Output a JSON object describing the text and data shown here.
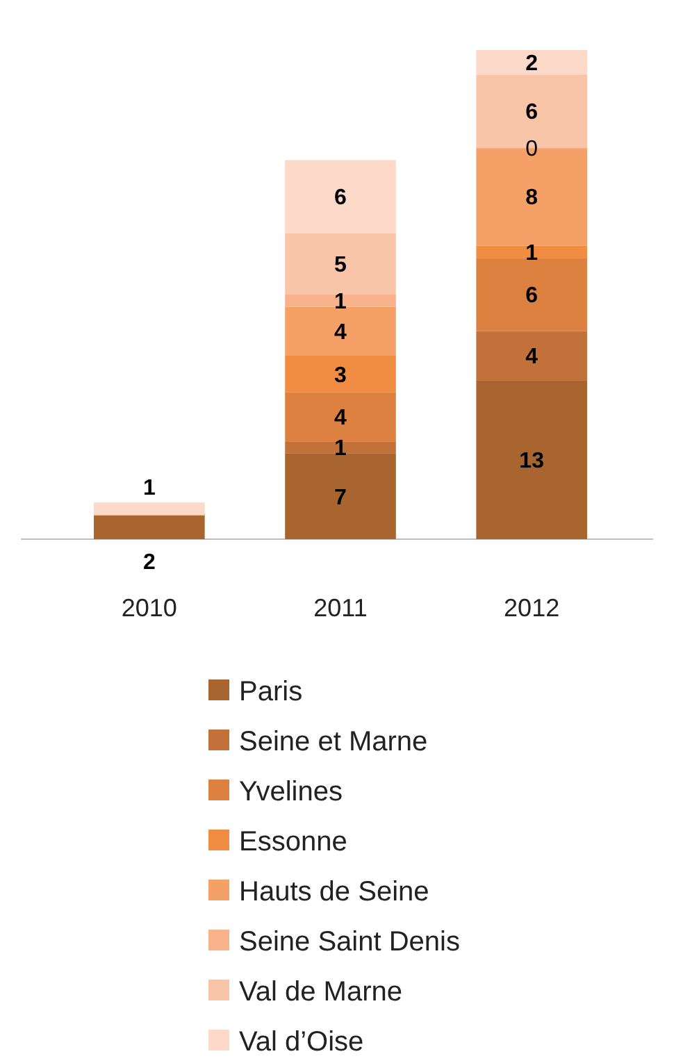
{
  "chart_data": {
    "type": "bar",
    "stacked": true,
    "categories": [
      "2010",
      "2011",
      "2012"
    ],
    "legend": "bottom",
    "series": [
      {
        "name": "Paris",
        "color": "#a8652f",
        "values": [
          2,
          7,
          13
        ],
        "value_labels": [
          "2",
          "7",
          "13"
        ]
      },
      {
        "name": "Seine et Marne",
        "color": "#c2713a",
        "values": [
          0,
          1,
          4
        ],
        "value_labels": [
          null,
          "1",
          "4"
        ]
      },
      {
        "name": "Yvelines",
        "color": "#dc813f",
        "values": [
          0,
          4,
          6
        ],
        "value_labels": [
          null,
          "4",
          "6"
        ]
      },
      {
        "name": "Essonne",
        "color": "#f08d43",
        "values": [
          0,
          3,
          1
        ],
        "value_labels": [
          null,
          "3",
          "1"
        ]
      },
      {
        "name": "Hauts de Seine",
        "color": "#f5a066",
        "values": [
          0,
          4,
          8
        ],
        "value_labels": [
          null,
          "4",
          "8"
        ]
      },
      {
        "name": "Seine Saint Denis",
        "color": "#f7b28c",
        "values": [
          0,
          1,
          0
        ],
        "value_labels": [
          null,
          "1",
          "0"
        ]
      },
      {
        "name": "Val de Marne",
        "color": "#f9c5a8",
        "values": [
          0,
          5,
          6
        ],
        "value_labels": [
          null,
          "5",
          "6"
        ]
      },
      {
        "name": "Val d’Oise",
        "color": "#fcd9c8",
        "values": [
          1,
          6,
          2
        ],
        "value_labels": [
          "1",
          "6",
          "2"
        ]
      }
    ]
  }
}
